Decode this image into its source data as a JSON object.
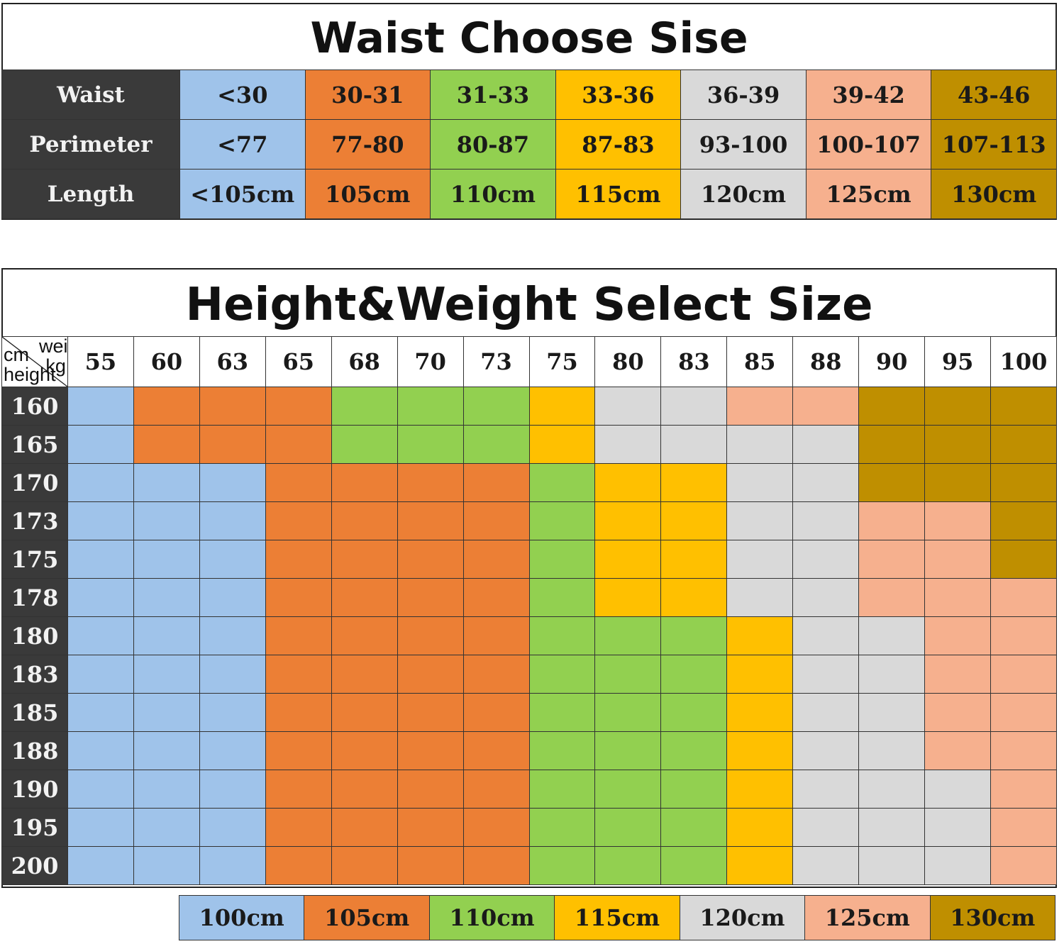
{
  "colors": {
    "blue": "#9fc3ea",
    "orange": "#ec7f35",
    "green": "#92d050",
    "yellow": "#ffc000",
    "gray": "#d9d9d9",
    "peach": "#f6b08e",
    "brown": "#bf8f00"
  },
  "waist_table": {
    "title": "Waist Choose Sise",
    "column_colors": [
      "blue",
      "orange",
      "green",
      "yellow",
      "gray",
      "peach",
      "brown"
    ],
    "rows": [
      {
        "label": "Waist",
        "values": [
          "<30",
          "30-31",
          "31-33",
          "33-36",
          "36-39",
          "39-42",
          "43-46"
        ]
      },
      {
        "label": "Perimeter",
        "values": [
          "<77",
          "77-80",
          "80-87",
          "87-83",
          "93-100",
          "100-107",
          "107-113"
        ]
      },
      {
        "label": "Length",
        "values": [
          "<105cm",
          "105cm",
          "110cm",
          "115cm",
          "120cm",
          "125cm",
          "130cm"
        ]
      }
    ]
  },
  "hw_table": {
    "title": "Height&Weight Select Size",
    "corner": {
      "cm": "cm",
      "weight": "weight",
      "kg": "kg",
      "height": "height"
    },
    "weights": [
      "55",
      "60",
      "63",
      "65",
      "68",
      "70",
      "73",
      "75",
      "80",
      "83",
      "85",
      "88",
      "90",
      "95",
      "100"
    ],
    "rows": [
      {
        "height": "160",
        "cells": [
          "blue",
          "orange",
          "orange",
          "orange",
          "green",
          "green",
          "green",
          "yellow",
          "gray",
          "gray",
          "peach",
          "peach",
          "brown",
          "brown",
          "brown"
        ]
      },
      {
        "height": "165",
        "cells": [
          "blue",
          "orange",
          "orange",
          "orange",
          "green",
          "green",
          "green",
          "yellow",
          "gray",
          "gray",
          "gray",
          "gray",
          "brown",
          "brown",
          "brown"
        ]
      },
      {
        "height": "170",
        "cells": [
          "blue",
          "blue",
          "blue",
          "orange",
          "orange",
          "orange",
          "orange",
          "green",
          "yellow",
          "yellow",
          "gray",
          "gray",
          "brown",
          "brown",
          "brown"
        ]
      },
      {
        "height": "173",
        "cells": [
          "blue",
          "blue",
          "blue",
          "orange",
          "orange",
          "orange",
          "orange",
          "green",
          "yellow",
          "yellow",
          "gray",
          "gray",
          "peach",
          "peach",
          "brown"
        ]
      },
      {
        "height": "175",
        "cells": [
          "blue",
          "blue",
          "blue",
          "orange",
          "orange",
          "orange",
          "orange",
          "green",
          "yellow",
          "yellow",
          "gray",
          "gray",
          "peach",
          "peach",
          "brown"
        ]
      },
      {
        "height": "178",
        "cells": [
          "blue",
          "blue",
          "blue",
          "orange",
          "orange",
          "orange",
          "orange",
          "green",
          "yellow",
          "yellow",
          "gray",
          "gray",
          "peach",
          "peach",
          "peach"
        ]
      },
      {
        "height": "180",
        "cells": [
          "blue",
          "blue",
          "blue",
          "orange",
          "orange",
          "orange",
          "orange",
          "green",
          "green",
          "green",
          "yellow",
          "gray",
          "gray",
          "peach",
          "peach"
        ]
      },
      {
        "height": "183",
        "cells": [
          "blue",
          "blue",
          "blue",
          "orange",
          "orange",
          "orange",
          "orange",
          "green",
          "green",
          "green",
          "yellow",
          "gray",
          "gray",
          "peach",
          "peach"
        ]
      },
      {
        "height": "185",
        "cells": [
          "blue",
          "blue",
          "blue",
          "orange",
          "orange",
          "orange",
          "orange",
          "green",
          "green",
          "green",
          "yellow",
          "gray",
          "gray",
          "peach",
          "peach"
        ]
      },
      {
        "height": "188",
        "cells": [
          "blue",
          "blue",
          "blue",
          "orange",
          "orange",
          "orange",
          "orange",
          "green",
          "green",
          "green",
          "yellow",
          "gray",
          "gray",
          "peach",
          "peach"
        ]
      },
      {
        "height": "190",
        "cells": [
          "blue",
          "blue",
          "blue",
          "orange",
          "orange",
          "orange",
          "orange",
          "green",
          "green",
          "green",
          "yellow",
          "gray",
          "gray",
          "gray",
          "peach"
        ]
      },
      {
        "height": "195",
        "cells": [
          "blue",
          "blue",
          "blue",
          "orange",
          "orange",
          "orange",
          "orange",
          "green",
          "green",
          "green",
          "yellow",
          "gray",
          "gray",
          "gray",
          "peach"
        ]
      },
      {
        "height": "200",
        "cells": [
          "blue",
          "blue",
          "blue",
          "orange",
          "orange",
          "orange",
          "orange",
          "green",
          "green",
          "green",
          "yellow",
          "gray",
          "gray",
          "gray",
          "peach"
        ]
      }
    ]
  },
  "legend": [
    {
      "label": "100cm",
      "color": "blue"
    },
    {
      "label": "105cm",
      "color": "orange"
    },
    {
      "label": "110cm",
      "color": "green"
    },
    {
      "label": "115cm",
      "color": "yellow"
    },
    {
      "label": "120cm",
      "color": "gray"
    },
    {
      "label": "125cm",
      "color": "peach"
    },
    {
      "label": "130cm",
      "color": "brown"
    }
  ]
}
